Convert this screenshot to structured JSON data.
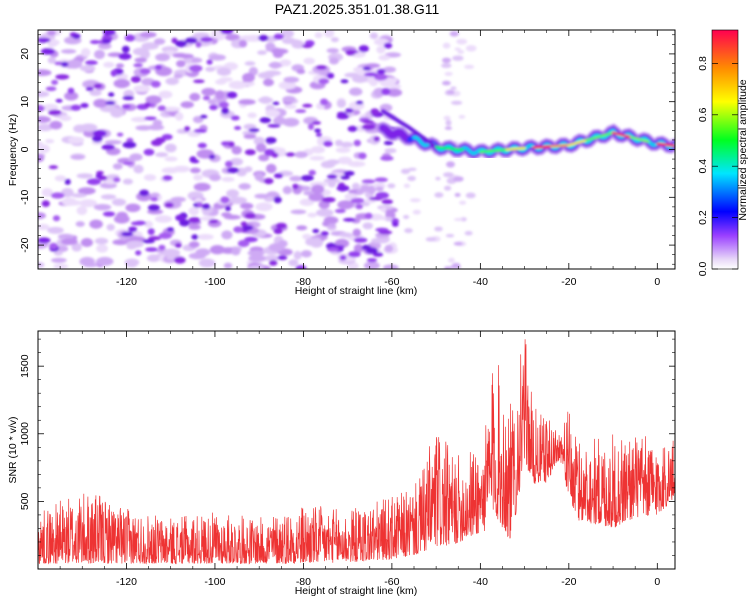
{
  "title": "PAZ1.2025.351.01.38.G11",
  "chart_data": [
    {
      "type": "heatmap",
      "title": "PAZ1.2025.351.01.38.G11",
      "xlabel": "Height of straight line (km)",
      "ylabel": "Frequency (Hz)",
      "xlim": [
        -140,
        4
      ],
      "ylim": [
        -25,
        25
      ],
      "xticks": [
        -120,
        -100,
        -80,
        -60,
        -40,
        -20,
        0
      ],
      "yticks": [
        -20,
        -10,
        0,
        10,
        20
      ],
      "colorbar": {
        "label": "Normalized spectral amplitude",
        "range": [
          0,
          0.93
        ],
        "ticks": [
          0.0,
          0.2,
          0.4,
          0.6,
          0.8
        ],
        "colormap": [
          "#ffffff",
          "#6000e0",
          "#0000ff",
          "#00e0ff",
          "#00ff00",
          "#ffff00",
          "#ff8000",
          "#ff0040"
        ]
      },
      "description_data": {
        "noise_region_x": [
          -140,
          -60
        ],
        "signal_track_start_x": -62,
        "signal_track": [
          {
            "x": -62,
            "freq": 4
          },
          {
            "x": -56,
            "freq": 2.5
          },
          {
            "x": -50,
            "freq": 0.5
          },
          {
            "x": -40,
            "freq": -0.5
          },
          {
            "x": -30,
            "freq": 0.3
          },
          {
            "x": -20,
            "freq": 0.9
          },
          {
            "x": -10,
            "freq": 3.5
          },
          {
            "x": 0,
            "freq": 1.2
          },
          {
            "x": 4,
            "freq": 0.8
          }
        ],
        "signal_peak_amplitude": 0.93,
        "noise_amplitude_typical": 0.25
      }
    },
    {
      "type": "line",
      "title": "",
      "xlabel": "Height of straight line (km)",
      "ylabel": "SNR (10 * v/v)",
      "xlim": [
        -140,
        4
      ],
      "ylim": [
        0,
        1760
      ],
      "xticks": [
        -120,
        -100,
        -80,
        -60,
        -40,
        -20,
        0
      ],
      "yticks": [
        500,
        1000,
        1500
      ],
      "color": "#ee3333",
      "series": [
        {
          "name": "SNR",
          "envelope": [
            {
              "x": -140,
              "base": 40,
              "peak": 420
            },
            {
              "x": -135,
              "base": 40,
              "peak": 510
            },
            {
              "x": -128,
              "base": 40,
              "peak": 580
            },
            {
              "x": -120,
              "base": 40,
              "peak": 450
            },
            {
              "x": -110,
              "base": 40,
              "peak": 380
            },
            {
              "x": -100,
              "base": 40,
              "peak": 420
            },
            {
              "x": -90,
              "base": 40,
              "peak": 380
            },
            {
              "x": -80,
              "base": 40,
              "peak": 480
            },
            {
              "x": -70,
              "base": 50,
              "peak": 440
            },
            {
              "x": -64,
              "base": 60,
              "peak": 500
            },
            {
              "x": -58,
              "base": 80,
              "peak": 560
            },
            {
              "x": -54,
              "base": 110,
              "peak": 650
            },
            {
              "x": -50,
              "base": 160,
              "peak": 1080
            },
            {
              "x": -46,
              "base": 180,
              "peak": 830
            },
            {
              "x": -42,
              "base": 240,
              "peak": 900
            },
            {
              "x": -39,
              "base": 280,
              "peak": 1000
            },
            {
              "x": -37,
              "base": 420,
              "peak": 1620
            },
            {
              "x": -35,
              "base": 300,
              "peak": 1450
            },
            {
              "x": -33,
              "base": 200,
              "peak": 1220
            },
            {
              "x": -30,
              "base": 800,
              "peak": 1750
            },
            {
              "x": -28,
              "base": 620,
              "peak": 1200
            },
            {
              "x": -25,
              "base": 640,
              "peak": 1120
            },
            {
              "x": -22,
              "base": 820,
              "peak": 1050
            },
            {
              "x": -20,
              "base": 520,
              "peak": 1180
            },
            {
              "x": -18,
              "base": 360,
              "peak": 960
            },
            {
              "x": -10,
              "base": 300,
              "peak": 1000
            },
            {
              "x": -5,
              "base": 380,
              "peak": 1020
            },
            {
              "x": 0,
              "base": 400,
              "peak": 950
            },
            {
              "x": 4,
              "base": 520,
              "peak": 960
            }
          ]
        }
      ]
    }
  ]
}
